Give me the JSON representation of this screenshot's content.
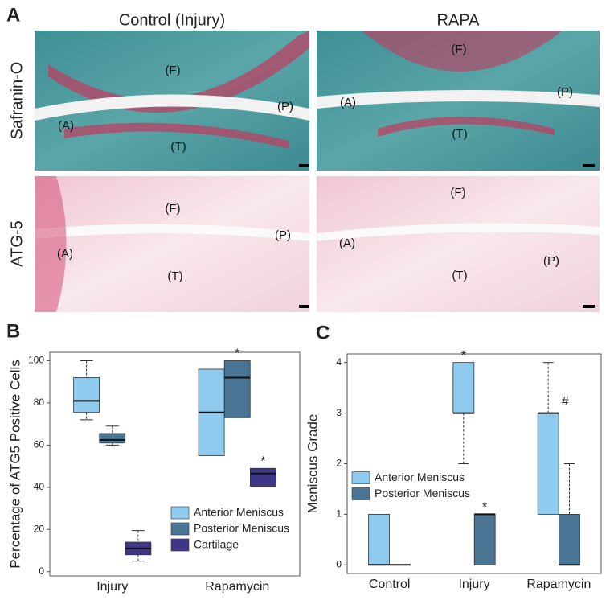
{
  "panel_a": {
    "label": "A",
    "columns": [
      "Control (Injury)",
      "RAPA"
    ],
    "rows": [
      "Safranin-O",
      "ATG-5"
    ],
    "images": [
      {
        "regions": [
          "(F)",
          "(P)",
          "(A)",
          "(T)"
        ]
      },
      {
        "regions": [
          "(F)",
          "(A)",
          "(P)",
          "(T)"
        ]
      },
      {
        "regions": [
          "(F)",
          "(P)",
          "(A)",
          "(T)"
        ]
      },
      {
        "regions": [
          "(F)",
          "(A)",
          "(P)",
          "(T)"
        ]
      }
    ]
  },
  "chart_data": [
    {
      "type": "box",
      "panel_label": "B",
      "y_label": "Percentage of ATG5 Positive Cells",
      "categories": [
        "Injury",
        "Rapamycin"
      ],
      "ylim": [
        -2,
        104
      ],
      "yticks": [
        0,
        20,
        40,
        60,
        80,
        100
      ],
      "legend": "lower right",
      "series": [
        {
          "name": "Anterior Meniscus",
          "color": "#8fcbef",
          "min": [
            72,
            55
          ],
          "q1": [
            75.5,
            55
          ],
          "median": [
            81,
            75.5
          ],
          "q3": [
            92,
            96
          ],
          "max": [
            100,
            96
          ],
          "annotations": [
            null,
            null
          ]
        },
        {
          "name": "Posterior Meniscus",
          "color": "#4a7494",
          "min": [
            60,
            73
          ],
          "q1": [
            61,
            73
          ],
          "median": [
            62.5,
            92
          ],
          "q3": [
            65.5,
            100
          ],
          "max": [
            69,
            100
          ],
          "annotations": [
            null,
            "*"
          ]
        },
        {
          "name": "Cartilage",
          "color": "#3e3788",
          "min": [
            5,
            40.5
          ],
          "q1": [
            8,
            40.5
          ],
          "median": [
            11,
            46.5
          ],
          "q3": [
            14,
            49
          ],
          "max": [
            19.5,
            49
          ],
          "annotations": [
            null,
            "*"
          ]
        }
      ]
    },
    {
      "type": "box",
      "panel_label": "C",
      "y_label": "Meniscus Grade",
      "categories": [
        "Control",
        "Injury",
        "Rapamycin"
      ],
      "ylim": [
        -0.17,
        4.17
      ],
      "yticks": [
        0,
        1,
        2,
        3,
        4
      ],
      "legend": "center left",
      "series": [
        {
          "name": "Anterior Meniscus",
          "color": "#8fcbef",
          "min": [
            0,
            2,
            1
          ],
          "q1": [
            0,
            3,
            1
          ],
          "median": [
            0,
            3,
            3
          ],
          "q3": [
            1,
            4,
            3
          ],
          "max": [
            1,
            4,
            4
          ],
          "annotations": [
            null,
            "*",
            "#"
          ]
        },
        {
          "name": "Posterior Meniscus",
          "color": "#4a7494",
          "min": [
            0,
            0,
            0
          ],
          "q1": [
            0,
            0,
            0
          ],
          "median": [
            0,
            1,
            0
          ],
          "q3": [
            0,
            1,
            1
          ],
          "max": [
            0,
            1,
            2
          ],
          "annotations": [
            null,
            "*",
            null
          ]
        }
      ]
    }
  ]
}
